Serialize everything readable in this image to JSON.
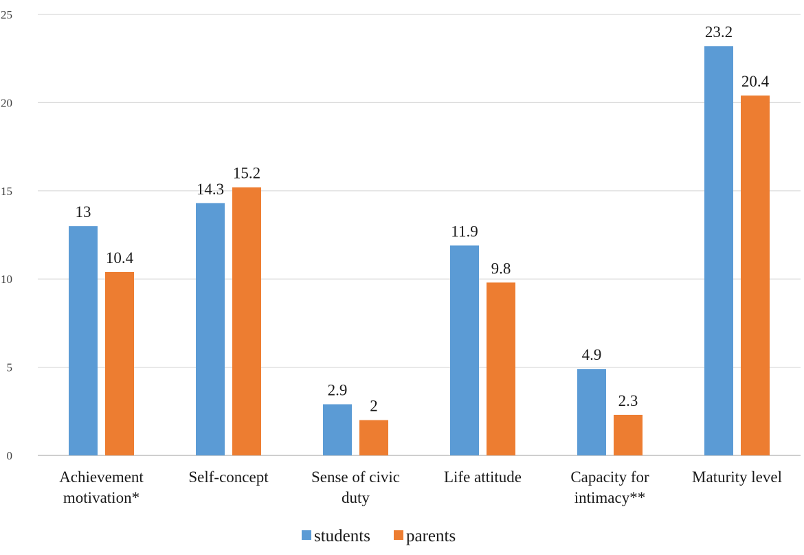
{
  "chart_data": {
    "type": "bar",
    "categories": [
      [
        "Achievement",
        "motivation*"
      ],
      [
        "Self-concept"
      ],
      [
        "Sense of civic",
        "duty"
      ],
      [
        "Life attitude"
      ],
      [
        "Capacity for",
        "intimacy**"
      ],
      [
        "Maturity level"
      ]
    ],
    "series": [
      {
        "name": "students",
        "color": "#5B9BD5",
        "values": [
          13,
          14.3,
          2.9,
          11.9,
          4.9,
          23.2
        ]
      },
      {
        "name": "parents",
        "color": "#ED7D31",
        "values": [
          10.4,
          15.2,
          2,
          9.8,
          2.3,
          20.4
        ]
      }
    ],
    "yticks": [
      "0",
      "5",
      "10",
      "15",
      "20",
      "25"
    ],
    "ylim": [
      0,
      25
    ],
    "grid": true,
    "legend_position": "bottom-center"
  }
}
